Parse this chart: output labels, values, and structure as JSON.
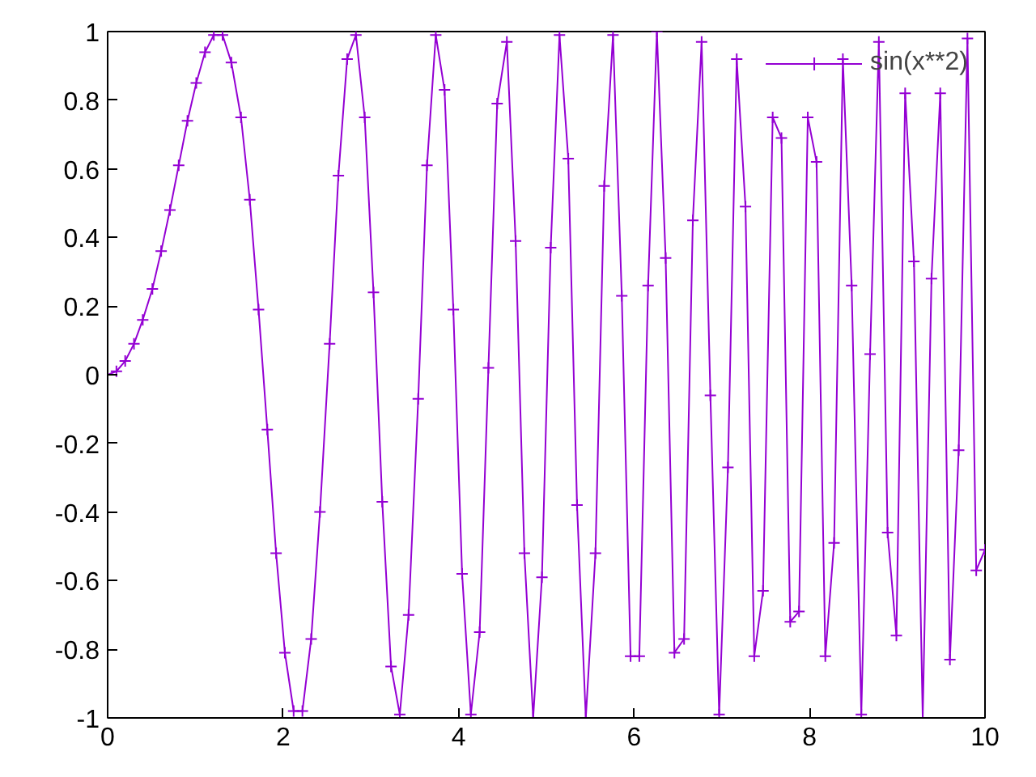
{
  "chart_data": {
    "type": "line",
    "x": [
      0,
      0.1,
      0.2,
      0.3,
      0.4,
      0.51,
      0.61,
      0.71,
      0.81,
      0.91,
      1.01,
      1.11,
      1.21,
      1.31,
      1.41,
      1.52,
      1.62,
      1.72,
      1.82,
      1.92,
      2.02,
      2.12,
      2.22,
      2.32,
      2.42,
      2.53,
      2.63,
      2.73,
      2.83,
      2.93,
      3.03,
      3.13,
      3.23,
      3.33,
      3.43,
      3.54,
      3.64,
      3.74,
      3.84,
      3.94,
      4.04,
      4.14,
      4.24,
      4.34,
      4.44,
      4.55,
      4.65,
      4.75,
      4.85,
      4.95,
      5.05,
      5.15,
      5.25,
      5.35,
      5.45,
      5.56,
      5.66,
      5.76,
      5.86,
      5.96,
      6.06,
      6.16,
      6.26,
      6.36,
      6.46,
      6.57,
      6.67,
      6.77,
      6.87,
      6.97,
      7.07,
      7.17,
      7.27,
      7.37,
      7.47,
      7.58,
      7.68,
      7.78,
      7.88,
      7.98,
      8.08,
      8.18,
      8.28,
      8.38,
      8.48,
      8.59,
      8.69,
      8.79,
      8.89,
      8.99,
      9.09,
      9.19,
      9.29,
      9.39,
      9.49,
      9.6,
      9.7,
      9.8,
      9.9,
      10
    ],
    "series": [
      {
        "name": "sin(x**2)",
        "color": "#9400d3",
        "values": [
          0,
          0.01,
          0.04,
          0.09,
          0.16,
          0.25,
          0.36,
          0.48,
          0.61,
          0.74,
          0.85,
          0.94,
          0.99,
          0.99,
          0.91,
          0.75,
          0.51,
          0.19,
          -0.16,
          -0.52,
          -0.81,
          -0.98,
          -0.98,
          -0.77,
          -0.4,
          0.09,
          0.58,
          0.92,
          0.99,
          0.75,
          0.24,
          -0.37,
          -0.85,
          -0.99,
          -0.7,
          -0.07,
          0.61,
          0.99,
          0.83,
          0.19,
          -0.58,
          -0.99,
          -0.75,
          0.02,
          0.79,
          0.97,
          0.39,
          -0.52,
          -1.0,
          -0.59,
          0.37,
          0.99,
          0.63,
          -0.38,
          -1.0,
          -0.52,
          0.55,
          0.99,
          0.23,
          -0.82,
          -0.82,
          0.26,
          1.0,
          0.34,
          -0.81,
          -0.77,
          0.45,
          0.97,
          -0.06,
          -0.99,
          -0.27,
          0.92,
          0.49,
          -0.82,
          -0.63,
          0.75,
          0.69,
          -0.72,
          -0.69,
          0.75,
          0.62,
          -0.82,
          -0.49,
          0.92,
          0.26,
          -0.99,
          0.06,
          0.97,
          -0.46,
          -0.76,
          0.82,
          0.33,
          -1.0,
          0.28,
          0.82,
          -0.83,
          -0.22,
          0.98,
          -0.57,
          -0.51
        ]
      }
    ],
    "xlim": [
      0,
      10
    ],
    "ylim": [
      -1,
      1
    ],
    "xticks": [
      0,
      2,
      4,
      6,
      8,
      10
    ],
    "yticks": [
      -1,
      -0.8,
      -0.6,
      -0.4,
      -0.2,
      0,
      0.2,
      0.4,
      0.6,
      0.8,
      1
    ],
    "grid": false,
    "legend": "top right",
    "marker": "cross",
    "line_style": "solid"
  }
}
